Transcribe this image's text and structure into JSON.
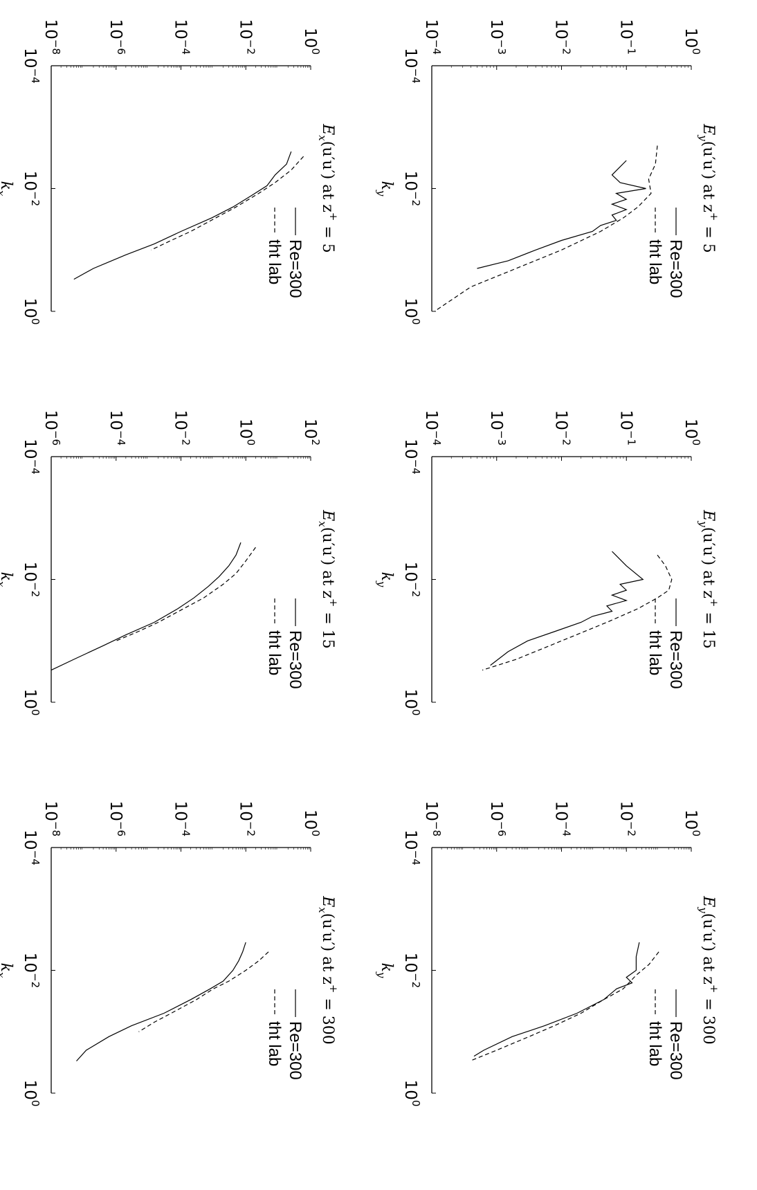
{
  "chart_data": [
    {
      "type": "line",
      "title": "E_x(u'u') at z+ = 5",
      "title_parts": {
        "lhs": "E",
        "sub": "x",
        "arg": "(u′u′) at z",
        "sup": "+",
        "rhs": " = 5"
      },
      "xlabel": "k_x",
      "xlabel_parts": {
        "base": "k",
        "sub": "x"
      },
      "xscale": "log",
      "yscale": "log",
      "xlim": [
        0.0001,
        1
      ],
      "ylim": [
        1e-08,
        1
      ],
      "xticks": [
        {
          "b": "10",
          "e": "−4"
        },
        {
          "b": "10",
          "e": "−2"
        },
        {
          "b": "10",
          "e": "0"
        }
      ],
      "yticks": [
        {
          "b": "10",
          "e": "−8"
        },
        {
          "b": "10",
          "e": "−6"
        },
        {
          "b": "10",
          "e": "−4"
        },
        {
          "b": "10",
          "e": "−2"
        },
        {
          "b": "10",
          "e": "0"
        }
      ],
      "legend": {
        "placement": "top-right",
        "entries": [
          "Re=300",
          "tht lab"
        ]
      },
      "series": [
        {
          "name": "Re=300",
          "style": "solid",
          "x": [
            0.0025,
            0.004,
            0.006,
            0.009,
            0.013,
            0.02,
            0.03,
            0.05,
            0.08,
            0.12,
            0.2,
            0.3
          ],
          "y": [
            0.25,
            0.18,
            0.08,
            0.045,
            0.015,
            0.004,
            0.0009,
            0.0001,
            1.5e-05,
            2e-06,
            2e-07,
            5e-08
          ]
        },
        {
          "name": "tht lab",
          "style": "dashed",
          "x": [
            0.003,
            0.005,
            0.008,
            0.012,
            0.02,
            0.03,
            0.05,
            0.07,
            0.1
          ],
          "y": [
            0.6,
            0.25,
            0.08,
            0.025,
            0.005,
            0.0012,
            0.0002,
            5e-05,
            1.2e-05
          ]
        }
      ]
    },
    {
      "type": "line",
      "title": "E_x(u'u') at z+ = 15",
      "title_parts": {
        "lhs": "E",
        "sub": "x",
        "arg": "(u′u′) at z",
        "sup": "+",
        "rhs": " = 15"
      },
      "xlabel": "k_x",
      "xlabel_parts": {
        "base": "k",
        "sub": "x"
      },
      "xscale": "log",
      "yscale": "log",
      "xlim": [
        0.0001,
        1
      ],
      "ylim": [
        1e-06,
        100
      ],
      "xticks": [
        {
          "b": "10",
          "e": "−4"
        },
        {
          "b": "10",
          "e": "−2"
        },
        {
          "b": "10",
          "e": "0"
        }
      ],
      "yticks": [
        {
          "b": "10",
          "e": "−6"
        },
        {
          "b": "10",
          "e": "−4"
        },
        {
          "b": "10",
          "e": "−2"
        },
        {
          "b": "10",
          "e": "0"
        },
        {
          "b": "10",
          "e": "2"
        }
      ],
      "legend": {
        "placement": "top-right",
        "entries": [
          "Re=300",
          "tht lab"
        ]
      },
      "series": [
        {
          "name": "Re=300",
          "style": "solid",
          "x": [
            0.0025,
            0.004,
            0.006,
            0.009,
            0.013,
            0.02,
            0.03,
            0.05,
            0.08,
            0.12,
            0.2,
            0.3
          ],
          "y": [
            0.7,
            0.5,
            0.3,
            0.15,
            0.07,
            0.025,
            0.008,
            0.0015,
            0.0002,
            4e-05,
            5e-06,
            1e-06
          ]
        },
        {
          "name": "tht lab",
          "style": "dashed",
          "x": [
            0.003,
            0.005,
            0.008,
            0.012,
            0.02,
            0.03,
            0.05,
            0.07,
            0.1
          ],
          "y": [
            2.0,
            1.0,
            0.5,
            0.2,
            0.05,
            0.012,
            0.002,
            0.0005,
            0.0001
          ]
        }
      ]
    },
    {
      "type": "line",
      "title": "E_x(u'u') at z+ = 300",
      "title_parts": {
        "lhs": "E",
        "sub": "x",
        "arg": "(u′u′) at z",
        "sup": "+",
        "rhs": " = 300"
      },
      "xlabel": "k_x",
      "xlabel_parts": {
        "base": "k",
        "sub": "x"
      },
      "xscale": "log",
      "yscale": "log",
      "xlim": [
        0.0001,
        1
      ],
      "ylim": [
        1e-08,
        1
      ],
      "xticks": [
        {
          "b": "10",
          "e": "−4"
        },
        {
          "b": "10",
          "e": "−2"
        },
        {
          "b": "10",
          "e": "0"
        }
      ],
      "yticks": [
        {
          "b": "10",
          "e": "−8"
        },
        {
          "b": "10",
          "e": "−6"
        },
        {
          "b": "10",
          "e": "−4"
        },
        {
          "b": "10",
          "e": "−2"
        },
        {
          "b": "10",
          "e": "0"
        }
      ],
      "legend": {
        "placement": "top-right",
        "entries": [
          "Re=300",
          "tht lab"
        ]
      },
      "series": [
        {
          "name": "Re=300",
          "style": "solid",
          "x": [
            0.0035,
            0.005,
            0.007,
            0.01,
            0.015,
            0.02,
            0.03,
            0.05,
            0.08,
            0.12,
            0.2,
            0.3
          ],
          "y": [
            0.01,
            0.008,
            0.006,
            0.004,
            0.002,
            0.0008,
            0.0002,
            3e-05,
            3e-06,
            6e-07,
            1.2e-07,
            6e-08
          ]
        },
        {
          "name": "tht lab",
          "style": "dashed",
          "x": [
            0.005,
            0.007,
            0.01,
            0.015,
            0.02,
            0.03,
            0.05,
            0.07,
            0.1
          ],
          "y": [
            0.05,
            0.025,
            0.01,
            0.003,
            0.001,
            0.0003,
            5e-05,
            1.5e-05,
            5e-06
          ]
        }
      ]
    },
    {
      "type": "line",
      "title": "E_y(u'u') at z+ = 5",
      "title_parts": {
        "lhs": "E",
        "sub": "y",
        "arg": "(u′u′) at z",
        "sup": "+",
        "rhs": " = 5"
      },
      "xlabel": "k_y",
      "xlabel_parts": {
        "base": "k",
        "sub": "y"
      },
      "xscale": "log",
      "yscale": "log",
      "xlim": [
        0.0001,
        1
      ],
      "ylim": [
        0.0001,
        1
      ],
      "xticks": [
        {
          "b": "10",
          "e": "−4"
        },
        {
          "b": "10",
          "e": "−2"
        },
        {
          "b": "10",
          "e": "0"
        }
      ],
      "yticks": [
        {
          "b": "10",
          "e": "−4"
        },
        {
          "b": "10",
          "e": "−3"
        },
        {
          "b": "10",
          "e": "−2"
        },
        {
          "b": "10",
          "e": "−1"
        },
        {
          "b": "10",
          "e": "0"
        }
      ],
      "legend": {
        "placement": "top-right",
        "entries": [
          "Re=300",
          "tht lab"
        ]
      },
      "series": [
        {
          "name": "Re=300",
          "style": "solid",
          "x": [
            0.0035,
            0.006,
            0.008,
            0.01,
            0.012,
            0.015,
            0.018,
            0.022,
            0.027,
            0.033,
            0.04,
            0.05,
            0.07,
            0.1,
            0.15,
            0.2
          ],
          "y": [
            0.1,
            0.06,
            0.08,
            0.2,
            0.07,
            0.1,
            0.06,
            0.1,
            0.06,
            0.07,
            0.04,
            0.03,
            0.01,
            0.004,
            0.0015,
            0.0005
          ]
        },
        {
          "name": "tht lab",
          "style": "dashed",
          "x": [
            0.002,
            0.004,
            0.007,
            0.012,
            0.02,
            0.03,
            0.05,
            0.1,
            0.2,
            0.4,
            1.0
          ],
          "y": [
            0.3,
            0.28,
            0.22,
            0.24,
            0.15,
            0.09,
            0.04,
            0.01,
            0.002,
            0.0004,
            0.00011
          ]
        }
      ]
    },
    {
      "type": "line",
      "title": "E_y(u'u') at z+ = 15",
      "title_parts": {
        "lhs": "E",
        "sub": "y",
        "arg": "(u′u′) at z",
        "sup": "+",
        "rhs": " = 15"
      },
      "xlabel": "k_y",
      "xlabel_parts": {
        "base": "k",
        "sub": "y"
      },
      "xscale": "log",
      "yscale": "log",
      "xlim": [
        0.0001,
        1
      ],
      "ylim": [
        0.0001,
        1
      ],
      "xticks": [
        {
          "b": "10",
          "e": "−4"
        },
        {
          "b": "10",
          "e": "−2"
        },
        {
          "b": "10",
          "e": "0"
        }
      ],
      "yticks": [
        {
          "b": "10",
          "e": "−4"
        },
        {
          "b": "10",
          "e": "−3"
        },
        {
          "b": "10",
          "e": "−2"
        },
        {
          "b": "10",
          "e": "−1"
        },
        {
          "b": "10",
          "e": "0"
        }
      ],
      "legend": {
        "placement": "top-right",
        "entries": [
          "Re=300",
          "tht lab"
        ]
      },
      "series": [
        {
          "name": "Re=300",
          "style": "solid",
          "x": [
            0.0035,
            0.006,
            0.01,
            0.012,
            0.015,
            0.018,
            0.022,
            0.027,
            0.033,
            0.04,
            0.05,
            0.07,
            0.1,
            0.15,
            0.25
          ],
          "y": [
            0.06,
            0.1,
            0.18,
            0.08,
            0.1,
            0.06,
            0.1,
            0.05,
            0.06,
            0.03,
            0.02,
            0.008,
            0.003,
            0.0015,
            0.0008
          ]
        },
        {
          "name": "tht lab",
          "style": "dashed",
          "x": [
            0.004,
            0.006,
            0.01,
            0.015,
            0.02,
            0.03,
            0.05,
            0.1,
            0.2,
            0.3
          ],
          "y": [
            0.3,
            0.4,
            0.5,
            0.45,
            0.3,
            0.15,
            0.05,
            0.01,
            0.002,
            0.0006
          ]
        }
      ]
    },
    {
      "type": "line",
      "title": "E_y(u'u') at z+ = 300",
      "title_parts": {
        "lhs": "E",
        "sub": "y",
        "arg": "(u′u′) at z",
        "sup": "+",
        "rhs": " = 300"
      },
      "xlabel": "k_y",
      "xlabel_parts": {
        "base": "k",
        "sub": "y"
      },
      "xscale": "log",
      "yscale": "log",
      "xlim": [
        0.0001,
        1
      ],
      "ylim": [
        1e-08,
        1
      ],
      "xticks": [
        {
          "b": "10",
          "e": "−4"
        },
        {
          "b": "10",
          "e": "−2"
        },
        {
          "b": "10",
          "e": "0"
        }
      ],
      "yticks": [
        {
          "b": "10",
          "e": "−8"
        },
        {
          "b": "10",
          "e": "−6"
        },
        {
          "b": "10",
          "e": "−4"
        },
        {
          "b": "10",
          "e": "−2"
        },
        {
          "b": "10",
          "e": "0"
        }
      ],
      "legend": {
        "placement": "top-right",
        "entries": [
          "Re=300",
          "tht lab"
        ]
      },
      "series": [
        {
          "name": "Re=300",
          "style": "solid",
          "x": [
            0.0035,
            0.006,
            0.01,
            0.013,
            0.016,
            0.02,
            0.03,
            0.05,
            0.08,
            0.12,
            0.2,
            0.25
          ],
          "y": [
            0.025,
            0.02,
            0.02,
            0.01,
            0.015,
            0.005,
            0.002,
            0.0003,
            3e-05,
            3e-06,
            4e-07,
            2e-07
          ]
        },
        {
          "name": "tht lab",
          "style": "dashed",
          "x": [
            0.005,
            0.008,
            0.012,
            0.02,
            0.03,
            0.05,
            0.08,
            0.12,
            0.2,
            0.3
          ],
          "y": [
            0.1,
            0.05,
            0.02,
            0.008,
            0.002,
            0.0004,
            6e-05,
            1e-05,
            1e-06,
            1.5e-07
          ]
        }
      ]
    }
  ]
}
